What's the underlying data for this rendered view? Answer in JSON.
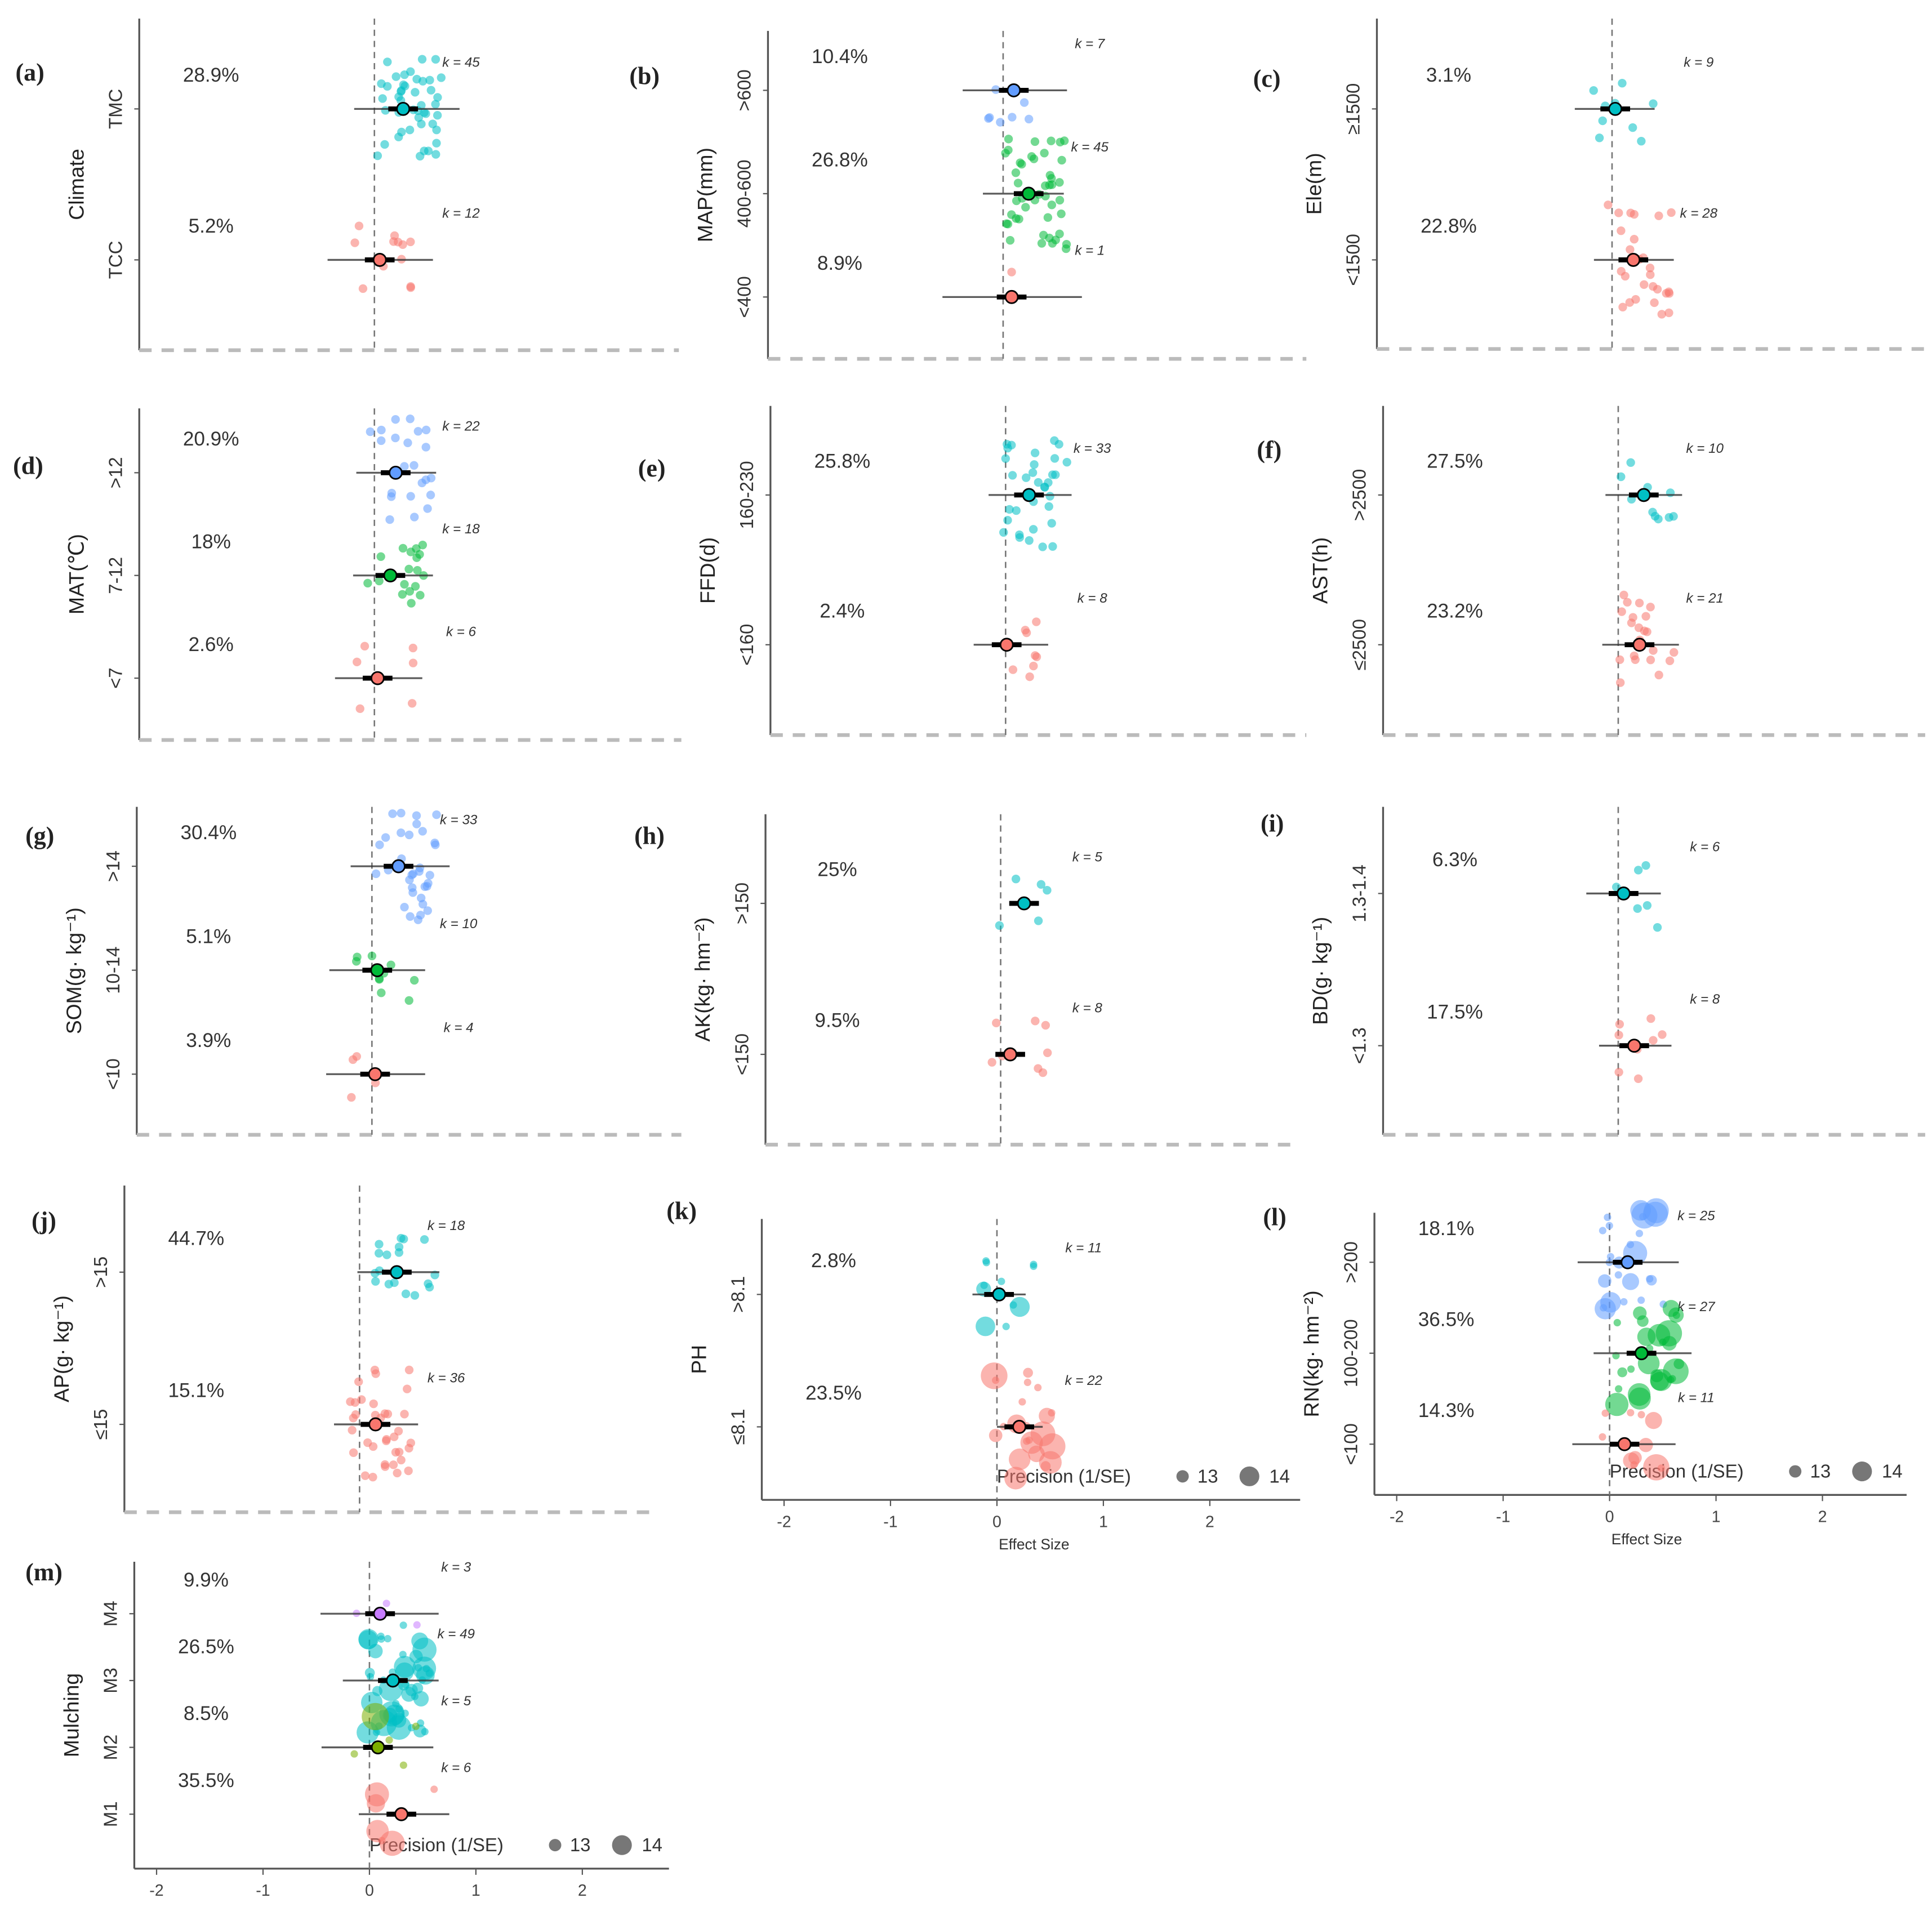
{
  "chart_data": [
    {
      "id": "a",
      "type": "forest",
      "panel_label": "(a)",
      "ylabel": "Climate",
      "groups": [
        {
          "category": "TMC",
          "percent": "28.9%",
          "k": "k = 45",
          "n": 45,
          "mean": 0.27,
          "ci": [
            -0.19,
            0.8
          ],
          "color": "#00BFC4"
        },
        {
          "category": "TCC",
          "percent": "5.2%",
          "k": "k = 12",
          "n": 12,
          "mean": 0.05,
          "ci": [
            -0.44,
            0.55
          ],
          "color": "#F8766D"
        }
      ]
    },
    {
      "id": "b",
      "type": "forest",
      "panel_label": "(b)",
      "ylabel": "MAP(mm)",
      "groups": [
        {
          "category": ">600",
          "percent": "10.4%",
          "k": "k = 7",
          "n": 7,
          "mean": 0.1,
          "ci": [
            -0.38,
            0.6
          ],
          "color": "#619CFF"
        },
        {
          "category": "400-600",
          "percent": "26.8%",
          "k": "k = 45",
          "n": 45,
          "mean": 0.24,
          "ci": [
            -0.19,
            0.57
          ],
          "color": "#00BA38"
        },
        {
          "category": "<400",
          "percent": "8.9%",
          "k": "k = 1",
          "n": 1,
          "mean": 0.08,
          "ci": [
            -0.57,
            0.74
          ],
          "color": "#F8766D"
        }
      ]
    },
    {
      "id": "c",
      "type": "forest",
      "panel_label": "(c)",
      "ylabel": "Ele(m)",
      "groups": [
        {
          "category": "≥1500",
          "percent": "3.1%",
          "k": "k = 9",
          "n": 9,
          "mean": 0.03,
          "ci": [
            -0.35,
            0.4
          ],
          "color": "#00BFC4"
        },
        {
          "category": "<1500",
          "percent": "22.8%",
          "k": "k = 28",
          "n": 28,
          "mean": 0.2,
          "ci": [
            -0.17,
            0.58
          ],
          "color": "#F8766D"
        }
      ]
    },
    {
      "id": "d",
      "type": "forest",
      "panel_label": "(d)",
      "ylabel": "MAT(℃)",
      "groups": [
        {
          "category": ">12",
          "percent": "20.9%",
          "k": "k = 22",
          "n": 22,
          "mean": 0.2,
          "ci": [
            -0.17,
            0.58
          ],
          "color": "#619CFF"
        },
        {
          "category": "7-12",
          "percent": "18%",
          "k": "k = 18",
          "n": 18,
          "mean": 0.15,
          "ci": [
            -0.2,
            0.55
          ],
          "color": "#00BA38"
        },
        {
          "category": "<7",
          "percent": "2.6%",
          "k": "k = 6",
          "n": 6,
          "mean": 0.03,
          "ci": [
            -0.37,
            0.45
          ],
          "color": "#F8766D"
        }
      ]
    },
    {
      "id": "e",
      "type": "forest",
      "panel_label": "(e)",
      "ylabel": "FFD(d)",
      "groups": [
        {
          "category": "160-230",
          "percent": "25.8%",
          "k": "k = 33",
          "n": 33,
          "mean": 0.22,
          "ci": [
            -0.16,
            0.62
          ],
          "color": "#00BFC4"
        },
        {
          "category": "<160",
          "percent": "2.4%",
          "k": "k = 8",
          "n": 8,
          "mean": 0.01,
          "ci": [
            -0.3,
            0.4
          ],
          "color": "#F8766D"
        }
      ]
    },
    {
      "id": "f",
      "type": "forest",
      "panel_label": "(f)",
      "ylabel": "AST(h)",
      "groups": [
        {
          "category": ">2500",
          "percent": "27.5%",
          "k": "k = 10",
          "n": 10,
          "mean": 0.24,
          "ci": [
            -0.12,
            0.6
          ],
          "color": "#00BFC4"
        },
        {
          "category": "≤2500",
          "percent": "23.2%",
          "k": "k = 21",
          "n": 21,
          "mean": 0.2,
          "ci": [
            -0.15,
            0.57
          ],
          "color": "#F8766D"
        }
      ]
    },
    {
      "id": "g",
      "type": "forest",
      "panel_label": "(g)",
      "ylabel": "SOM(g· kg⁻¹)",
      "groups": [
        {
          "category": ">14",
          "percent": "30.4%",
          "k": "k = 33",
          "n": 33,
          "mean": 0.25,
          "ci": [
            -0.2,
            0.73
          ],
          "color": "#619CFF"
        },
        {
          "category": "10-14",
          "percent": "5.1%",
          "k": "k = 10",
          "n": 10,
          "mean": 0.05,
          "ci": [
            -0.4,
            0.5
          ],
          "color": "#00BA38"
        },
        {
          "category": "<10",
          "percent": "3.9%",
          "k": "k = 4",
          "n": 4,
          "mean": 0.03,
          "ci": [
            -0.43,
            0.5
          ],
          "color": "#F8766D"
        }
      ]
    },
    {
      "id": "h",
      "type": "forest",
      "panel_label": "(h)",
      "ylabel": "AK(kg· hm⁻²)",
      "groups": [
        {
          "category": ">150",
          "percent": "25%",
          "k": "k = 5",
          "n": 5,
          "mean": 0.22,
          "ci": [
            0.14,
            0.3
          ],
          "color": "#00BFC4"
        },
        {
          "category": "<150",
          "percent": "9.5%",
          "k": "k = 8",
          "n": 8,
          "mean": 0.09,
          "ci": [
            0.02,
            0.16
          ],
          "color": "#F8766D"
        }
      ]
    },
    {
      "id": "i",
      "type": "forest",
      "panel_label": "(i)",
      "ylabel": "BD(g· kg⁻¹)",
      "groups": [
        {
          "category": "1.3-1.4",
          "percent": "6.3%",
          "k": "k = 6",
          "n": 6,
          "mean": 0.05,
          "ci": [
            -0.3,
            0.4
          ],
          "color": "#00BFC4"
        },
        {
          "category": "<1.3",
          "percent": "17.5%",
          "k": "k = 8",
          "n": 8,
          "mean": 0.15,
          "ci": [
            -0.18,
            0.5
          ],
          "color": "#F8766D"
        }
      ]
    },
    {
      "id": "j",
      "type": "forest",
      "panel_label": "(j)",
      "ylabel": "AP(g· kg⁻¹)",
      "groups": [
        {
          "category": ">15",
          "percent": "44.7%",
          "k": "k = 18",
          "n": 18,
          "mean": 0.35,
          "ci": [
            -0.02,
            0.75
          ],
          "color": "#00BFC4"
        },
        {
          "category": "≤15",
          "percent": "15.1%",
          "k": "k = 36",
          "n": 36,
          "mean": 0.15,
          "ci": [
            -0.24,
            0.55
          ],
          "color": "#F8766D"
        }
      ]
    },
    {
      "id": "k",
      "type": "forest",
      "panel_label": "(k)",
      "ylabel": "PH",
      "xlabel": "Effect Size",
      "xticks": [
        -2,
        -1,
        0,
        1,
        2
      ],
      "legend": {
        "title": "Precision (1/SE)",
        "items": [
          "13",
          "14"
        ]
      },
      "groups": [
        {
          "category": ">8.1",
          "percent": "2.8%",
          "k": "k = 11",
          "n": 11,
          "mean": 0.02,
          "ci": [
            -0.23,
            0.27
          ],
          "color": "#00BFC4"
        },
        {
          "category": "≤8.1",
          "percent": "23.5%",
          "k": "k = 22",
          "n": 22,
          "mean": 0.21,
          "ci": [
            0.0,
            0.43
          ],
          "color": "#F8766D"
        }
      ]
    },
    {
      "id": "l",
      "type": "forest",
      "panel_label": "(l)",
      "ylabel": "RN(kg· hm⁻²)",
      "xlabel": "Effect Size",
      "xticks": [
        -2,
        -1,
        0,
        1,
        2
      ],
      "legend": {
        "title": "Precision (1/SE)",
        "items": [
          "13",
          "14"
        ]
      },
      "groups": [
        {
          "category": ">200",
          "percent": "18.1%",
          "k": "k = 25",
          "n": 25,
          "mean": 0.17,
          "ci": [
            -0.3,
            0.65
          ],
          "color": "#619CFF"
        },
        {
          "category": "100-200",
          "percent": "36.5%",
          "k": "k = 27",
          "n": 27,
          "mean": 0.3,
          "ci": [
            -0.15,
            0.77
          ],
          "color": "#00BA38"
        },
        {
          "category": "<100",
          "percent": "14.3%",
          "k": "k = 11",
          "n": 11,
          "mean": 0.14,
          "ci": [
            -0.35,
            0.62
          ],
          "color": "#F8766D"
        }
      ]
    },
    {
      "id": "m",
      "type": "forest",
      "panel_label": "(m)",
      "ylabel": "Mulching",
      "xlabel": "Effect Size",
      "xticks": [
        -2,
        -1,
        0,
        1,
        2
      ],
      "legend": {
        "title": "Precision (1/SE)",
        "items": [
          "13",
          "14"
        ]
      },
      "groups": [
        {
          "category": "M4",
          "percent": "9.9%",
          "k": "k = 3",
          "n": 3,
          "mean": 0.1,
          "ci": [
            -0.46,
            0.65
          ],
          "color": "#C77CFF"
        },
        {
          "category": "M3",
          "percent": "26.5%",
          "k": "k = 49",
          "n": 49,
          "mean": 0.22,
          "ci": [
            -0.25,
            0.65
          ],
          "color": "#00BFC4"
        },
        {
          "category": "M2",
          "percent": "8.5%",
          "k": "k = 5",
          "n": 5,
          "mean": 0.08,
          "ci": [
            -0.45,
            0.6
          ],
          "color": "#7CAE00"
        },
        {
          "category": "M1",
          "percent": "35.5%",
          "k": "k = 6",
          "n": 6,
          "mean": 0.3,
          "ci": [
            -0.1,
            0.75
          ],
          "color": "#F8766D"
        }
      ]
    }
  ]
}
